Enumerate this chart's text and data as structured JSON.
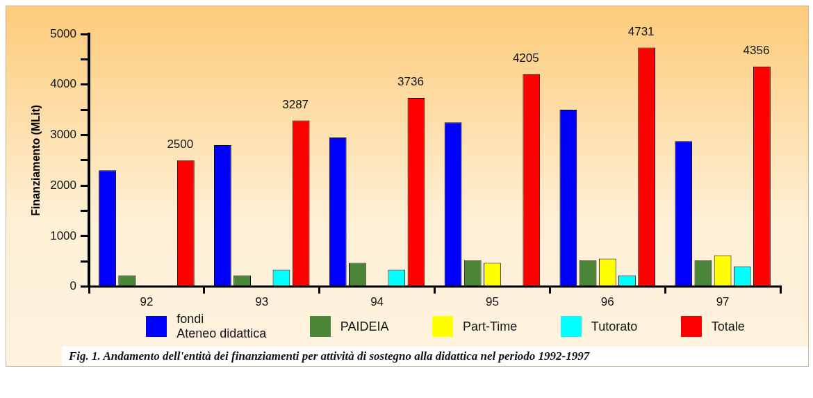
{
  "chart_data": {
    "type": "bar",
    "ylabel": "Finanziamento (MLit)",
    "categories": [
      "92",
      "93",
      "94",
      "95",
      "96",
      "97"
    ],
    "series": [
      {
        "name": "fondi\nAteneo didattica",
        "color": "#0000ff",
        "values": [
          2300,
          2800,
          2950,
          3250,
          3500,
          2880
        ]
      },
      {
        "name": "PAIDEIA",
        "color": "#4a8538",
        "values": [
          220,
          220,
          470,
          520,
          520,
          520
        ]
      },
      {
        "name": "Part-Time",
        "color": "#ffff00",
        "values": [
          null,
          null,
          null,
          470,
          550,
          620
        ]
      },
      {
        "name": "Tutorato",
        "color": "#00ffff",
        "values": [
          null,
          330,
          330,
          null,
          220,
          400
        ]
      },
      {
        "name": "Totale",
        "color": "#ff0000",
        "values": [
          2500,
          3287,
          3736,
          4205,
          4731,
          4356
        ],
        "value_labels": [
          "2500",
          "3287",
          "3736",
          "4205",
          "4731",
          "4356"
        ]
      }
    ],
    "ylim": [
      0,
      5000
    ],
    "yticks": [
      0,
      {
        "value": 500,
        "label": null
      },
      1000,
      {
        "value": 1500,
        "label": null
      },
      2000,
      {
        "value": 2500,
        "label": null
      },
      3000,
      {
        "value": 3500,
        "label": null
      },
      4000,
      {
        "value": 4500,
        "label": null
      },
      5000
    ],
    "grid": false,
    "legend": "bottom",
    "annotations": [
      "Fig. 1. Andamento dell'entità dei finanziamenti per attività di sostegno alla didattica nel periodo 1992-1997"
    ]
  }
}
